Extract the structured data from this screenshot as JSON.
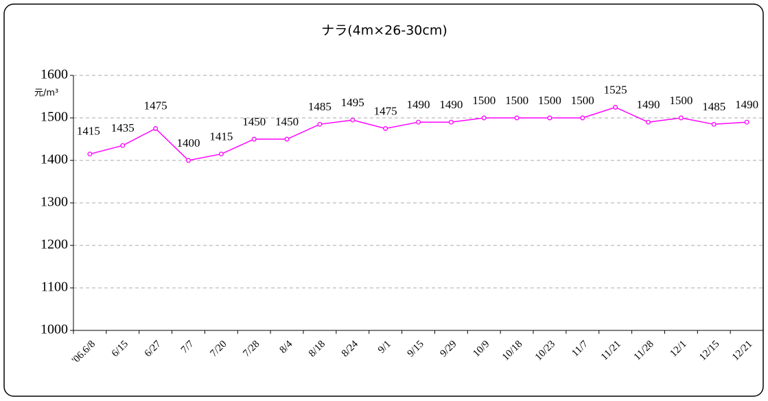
{
  "chart_data": {
    "type": "line",
    "title": "ナラ(4m×26-30cm)",
    "y_label": "元/m³",
    "categories": [
      "'06.6/8",
      "6/15",
      "6/27",
      "7/7",
      "7/20",
      "7/28",
      "8/4",
      "8/18",
      "8/24",
      "9/1",
      "9/15",
      "9/29",
      "10/9",
      "10/18",
      "10/23",
      "11/7",
      "11/21",
      "11/28",
      "12/1",
      "12/15",
      "12/21"
    ],
    "series": [
      {
        "name": "ナラ",
        "color": "#ff00ff",
        "values": [
          1415,
          1435,
          1475,
          1400,
          1415,
          1450,
          1450,
          1485,
          1495,
          1475,
          1490,
          1490,
          1500,
          1500,
          1500,
          1500,
          1525,
          1490,
          1500,
          1485,
          1490
        ]
      }
    ],
    "ylim": [
      1000,
      1600
    ],
    "yticks": [
      1000,
      1100,
      1200,
      1300,
      1400,
      1500,
      1600
    ],
    "grid": true
  }
}
